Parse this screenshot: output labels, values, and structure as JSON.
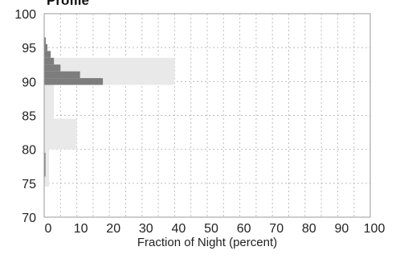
{
  "chart_data": {
    "type": "bar",
    "orientation": "horizontal",
    "title": "Profile",
    "xlabel": "Fraction of Night (percent)",
    "ylabel": "",
    "xlim": [
      0,
      100
    ],
    "ylim": [
      70,
      100
    ],
    "xticks": [
      "0",
      "10",
      "20",
      "30",
      "40",
      "50",
      "60",
      "70",
      "80",
      "90",
      "100"
    ],
    "yticks": [
      "100",
      "95",
      "90",
      "85",
      "80",
      "75",
      "70"
    ],
    "grid": true,
    "series": [
      {
        "style": "light-gray bins",
        "color": "#e9e9e9",
        "bins": [
          {
            "y0": 74.5,
            "y1": 80,
            "value": 1.5
          },
          {
            "y0": 80,
            "y1": 84.5,
            "value": 10
          },
          {
            "y0": 84.5,
            "y1": 89.5,
            "value": 3
          },
          {
            "y0": 89.5,
            "y1": 93.5,
            "value": 40
          }
        ]
      },
      {
        "style": "dark-gray bins",
        "color": "#7d7d7d",
        "bins": [
          {
            "y0": 89.5,
            "y1": 90.5,
            "value": 18
          },
          {
            "y0": 90.5,
            "y1": 91.5,
            "value": 11
          },
          {
            "y0": 91.5,
            "y1": 92.5,
            "value": 5
          },
          {
            "y0": 92.5,
            "y1": 93.5,
            "value": 3
          },
          {
            "y0": 93.5,
            "y1": 94.5,
            "value": 2
          },
          {
            "y0": 94.5,
            "y1": 95.5,
            "value": 1
          },
          {
            "y0": 95.5,
            "y1": 96.5,
            "value": 0.5
          },
          {
            "y0": 76,
            "y1": 79.5,
            "value": 0.4
          }
        ]
      }
    ]
  }
}
